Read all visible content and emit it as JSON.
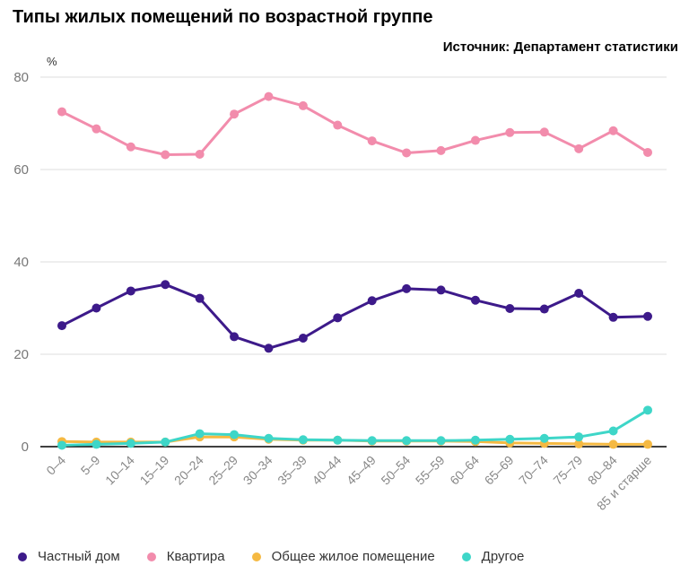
{
  "chart_data": {
    "type": "line",
    "title": "Типы жилых помещений по возрастной группе",
    "source": "Источник: Департамент статистики",
    "ylabel": "%",
    "ylim": [
      0,
      80
    ],
    "yticks": [
      0,
      20,
      40,
      60,
      80
    ],
    "grid": true,
    "legend_position": "bottom",
    "categories": [
      "0–4",
      "5–9",
      "10–14",
      "15–19",
      "20–24",
      "25–29",
      "30–34",
      "35–39",
      "40–44",
      "45–49",
      "50–54",
      "55–59",
      "60–64",
      "65–69",
      "70–74",
      "75–79",
      "80–84",
      "85 и старше"
    ],
    "series": [
      {
        "name": "Частный дом",
        "color": "#3d1a8a",
        "values": [
          26.2,
          30.0,
          33.7,
          35.1,
          32.1,
          23.8,
          21.3,
          23.5,
          27.9,
          31.6,
          34.2,
          33.9,
          31.7,
          29.9,
          29.8,
          33.2,
          28.0,
          28.2
        ]
      },
      {
        "name": "Квартира",
        "color": "#f28cac",
        "values": [
          72.5,
          68.8,
          64.9,
          63.2,
          63.3,
          72.0,
          75.8,
          73.8,
          69.6,
          66.2,
          63.6,
          64.1,
          66.3,
          68.0,
          68.1,
          64.5,
          68.4,
          63.7
        ]
      },
      {
        "name": "Общее жилое помещение",
        "color": "#f5b942",
        "values": [
          1.1,
          1.0,
          1.0,
          1.0,
          2.1,
          2.1,
          1.6,
          1.4,
          1.4,
          1.2,
          1.2,
          1.2,
          1.1,
          0.8,
          0.7,
          0.6,
          0.5,
          0.5
        ]
      },
      {
        "name": "Другое",
        "color": "#3ed6c8",
        "values": [
          0.3,
          0.5,
          0.7,
          1.0,
          2.8,
          2.6,
          1.8,
          1.5,
          1.4,
          1.3,
          1.3,
          1.3,
          1.4,
          1.6,
          1.8,
          2.1,
          3.4,
          7.9
        ]
      }
    ]
  }
}
